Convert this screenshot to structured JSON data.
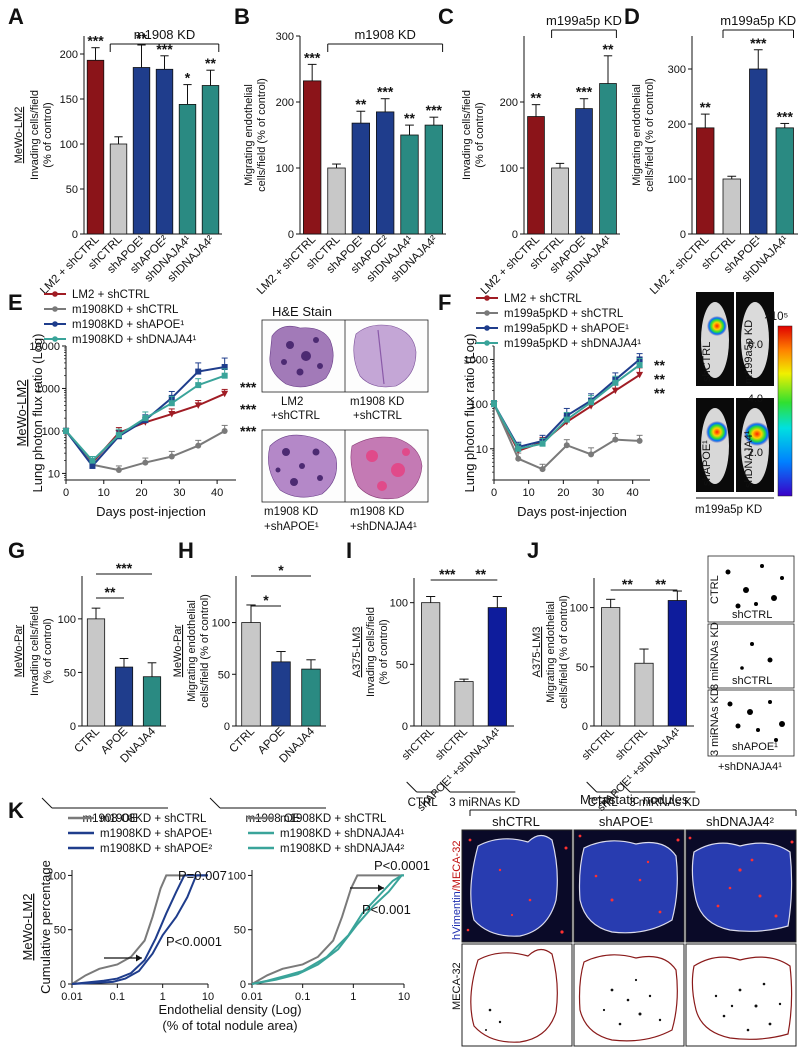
{
  "colors": {
    "dark_red": "#8b1419",
    "light_gray": "#c8c8c8",
    "navy": "#1f3d8c",
    "teal": "#2a8a82",
    "blue_bright": "#0e1c9c",
    "gray_line": "#7a7a7a",
    "red_line": "#a01c24",
    "teal_line": "#3aa49a"
  },
  "panel_letters": {
    "A": "A",
    "B": "B",
    "C": "C",
    "D": "D",
    "E": "E",
    "F": "F",
    "G": "G",
    "H": "H",
    "I": "I",
    "J": "J",
    "K": "K"
  },
  "common": {
    "m1908_kd": "m1908 KD",
    "m199a5p_kd": "m199a5p KD",
    "m1908_oe": "m1908 OE",
    "ctrl": "CTRL",
    "three_mirnas_kd": "3 miRNAs KD",
    "days_post_injection": "Days post-injection",
    "lung_photon_flux": "Lung photon flux ratio (Log)",
    "pct_control": "(% of control)"
  },
  "images": {
    "he_title": "H&E Stain",
    "he_caption_1": "LM2",
    "he_caption_1b": "+shCTRL",
    "he_caption_2": "m1908 KD",
    "he_caption_2b": "+shCTRL",
    "he_caption_3": "m1908 KD",
    "he_caption_3b": "+shAPOE¹",
    "he_caption_4": "m1908 KD",
    "he_caption_4b": "+shDNAJA4¹",
    "bli_label_1": "shCTRL",
    "bli_label_2": "m199a5p KD",
    "bli_label_3": "shAPOE¹",
    "bli_label_4": "shDNAJA4¹",
    "bli_group": "m199a5p KD",
    "colorbar_unit": "×10⁵",
    "colorbar_ticks": [
      "6.0",
      "4.0",
      "2.0"
    ],
    "j_img_1": "CTRL",
    "j_img_1b": "shCTRL",
    "j_img_2": "3 miRNAs KD",
    "j_img_2b": "shCTRL",
    "j_img_3": "3 miRNAs KD",
    "j_img_3b": "shAPOE¹",
    "j_img_3c": "+shDNAJA4¹",
    "k_header": "Metastatic nodules",
    "k_cols": [
      "shCTRL",
      "shAPOE¹",
      "shDNAJA4²"
    ],
    "k_row1_a": "hVimentin",
    "k_row1_b": "/MECA-32",
    "k_row2": "MECA-32"
  },
  "chart_data": [
    {
      "id": "A",
      "type": "bar",
      "ylabel_outer": "MeWo-LM2",
      "ylabel": [
        "Invading cells/field",
        "(% of control)"
      ],
      "ylim": [
        0,
        220
      ],
      "yticks": [
        0,
        50,
        100,
        150,
        200
      ],
      "bracket": "m1908 KD",
      "categories": [
        "LM2 + shCTRL",
        "shCTRL",
        "shAPOE¹",
        "shAPOE²",
        "shDNAJA4¹",
        "shDNAJA4²"
      ],
      "values": [
        193,
        100,
        185,
        183,
        144,
        165
      ],
      "errors": [
        14,
        8,
        25,
        15,
        22,
        17
      ],
      "stars": [
        "***",
        "",
        "**",
        "***",
        "*",
        "**"
      ],
      "colors": [
        "dark_red",
        "light_gray",
        "navy",
        "navy",
        "teal",
        "teal"
      ]
    },
    {
      "id": "B",
      "type": "bar",
      "ylabel": [
        "Migrating endothelial",
        "cells/field (% of control)"
      ],
      "ylim": [
        0,
        300
      ],
      "yticks": [
        0,
        100,
        200,
        300
      ],
      "bracket": "m1908 KD",
      "categories": [
        "LM2 + shCTRL",
        "shCTRL",
        "shAPOE¹",
        "shAPOE²",
        "shDNAJA4¹",
        "shDNAJA4²"
      ],
      "values": [
        232,
        100,
        168,
        185,
        150,
        165
      ],
      "errors": [
        25,
        6,
        18,
        20,
        15,
        12
      ],
      "stars": [
        "***",
        "",
        "**",
        "***",
        "**",
        "***"
      ],
      "colors": [
        "dark_red",
        "light_gray",
        "navy",
        "navy",
        "teal",
        "teal"
      ]
    },
    {
      "id": "C",
      "type": "bar",
      "ylabel": [
        "Invading cells/field",
        "(% of control)"
      ],
      "ylim": [
        0,
        300
      ],
      "yticks": [
        0,
        100,
        200
      ],
      "bracket": "m199a5p KD",
      "categories": [
        "LM2 + shCTRL",
        "shCTRL",
        "shAPOE¹",
        "shDNAJA4¹"
      ],
      "values": [
        178,
        100,
        190,
        228
      ],
      "errors": [
        18,
        7,
        15,
        42
      ],
      "stars": [
        "**",
        "",
        "***",
        "**"
      ],
      "colors": [
        "dark_red",
        "light_gray",
        "navy",
        "teal"
      ]
    },
    {
      "id": "D",
      "type": "bar",
      "ylabel": [
        "Migrating endothelial",
        "cells/field (% of control)"
      ],
      "ylim": [
        0,
        360
      ],
      "yticks": [
        0,
        100,
        200,
        300
      ],
      "bracket": "m199a5p KD",
      "categories": [
        "LM2 + shCTRL",
        "shCTRL",
        "shAPOE¹",
        "shDNAJA4¹"
      ],
      "values": [
        193,
        100,
        300,
        193
      ],
      "errors": [
        25,
        5,
        35,
        8
      ],
      "stars": [
        "**",
        "",
        "***",
        "***"
      ],
      "colors": [
        "dark_red",
        "light_gray",
        "navy",
        "teal"
      ]
    },
    {
      "id": "E",
      "type": "line",
      "ylabel_outer": "MeWo-LM2",
      "ylabel": "Lung photon flux ratio (Log)",
      "xlabel": "Days post-injection",
      "yscale": "log",
      "ylim": [
        7,
        10000
      ],
      "yticks": [
        10,
        100,
        1000,
        10000
      ],
      "xlim": [
        0,
        45
      ],
      "xticks": [
        0,
        10,
        20,
        30,
        40
      ],
      "x": [
        0,
        7,
        14,
        21,
        28,
        35,
        42
      ],
      "series": [
        {
          "name": "LM2 + shCTRL",
          "color": "red_line",
          "marker": "triangle",
          "values": [
            100,
            18,
            90,
            160,
            250,
            400,
            750
          ],
          "errors": [
            15,
            4,
            30,
            50,
            80,
            120,
            200
          ]
        },
        {
          "name": "m1908KD + shCTRL",
          "color": "gray_line",
          "marker": "circle",
          "values": [
            100,
            16,
            12,
            18,
            25,
            45,
            100
          ],
          "errors": [
            15,
            4,
            3,
            5,
            8,
            15,
            35
          ]
        },
        {
          "name": "m1908KD + shAPOE¹",
          "color": "navy",
          "marker": "square",
          "values": [
            100,
            15,
            75,
            180,
            600,
            2500,
            3200
          ],
          "errors": [
            15,
            4,
            25,
            60,
            250,
            1500,
            2000
          ]
        },
        {
          "name": "m1908KD + shDNAJA4¹",
          "color": "teal_line",
          "marker": "square",
          "values": [
            100,
            20,
            80,
            200,
            450,
            1200,
            2000
          ],
          "errors": [
            15,
            5,
            30,
            80,
            200,
            500,
            900
          ]
        }
      ],
      "end_stars": [
        "***",
        "***",
        "***"
      ]
    },
    {
      "id": "F",
      "type": "line",
      "ylabel": "Lung photon flux ratio (Log)",
      "xlabel": "Days post-injection",
      "yscale": "log",
      "ylim": [
        2,
        2000
      ],
      "yticks": [
        10,
        100,
        1000
      ],
      "xlim": [
        0,
        45
      ],
      "xticks": [
        0,
        10,
        20,
        30,
        40
      ],
      "x": [
        0,
        7,
        14,
        21,
        28,
        35,
        42
      ],
      "series": [
        {
          "name": "LM2 + shCTRL",
          "color": "red_line",
          "marker": "triangle",
          "values": [
            100,
            9,
            14,
            40,
            90,
            200,
            450
          ],
          "errors": [
            20,
            2,
            4,
            15,
            35,
            80,
            200
          ]
        },
        {
          "name": "m199a5pKD + shCTRL",
          "color": "gray_line",
          "marker": "circle",
          "values": [
            100,
            6,
            3.5,
            12,
            7.5,
            16,
            15
          ],
          "errors": [
            20,
            2,
            1,
            4,
            3,
            6,
            5
          ]
        },
        {
          "name": "m199a5pKD + shAPOE¹",
          "color": "navy",
          "marker": "square",
          "values": [
            100,
            11,
            15,
            55,
            120,
            350,
            1000
          ],
          "errors": [
            20,
            3,
            5,
            25,
            50,
            150,
            350
          ]
        },
        {
          "name": "m199a5pKD + shDNAJA4¹",
          "color": "teal_line",
          "marker": "square",
          "values": [
            100,
            10,
            13,
            45,
            110,
            300,
            750
          ],
          "errors": [
            20,
            3,
            4,
            20,
            45,
            120,
            300
          ]
        }
      ],
      "end_stars": [
        "**",
        "**",
        "**"
      ]
    },
    {
      "id": "G",
      "type": "bar",
      "ylabel_outer": "MeWo-Par",
      "ylabel": [
        "Invading cells/field",
        "(% of control)"
      ],
      "ylim": [
        0,
        140
      ],
      "yticks": [
        0,
        50,
        100
      ],
      "categories": [
        "CTRL",
        "APOE",
        "DNAJA4"
      ],
      "values": [
        100,
        55,
        46
      ],
      "errors": [
        10,
        8,
        13
      ],
      "colors": [
        "light_gray",
        "navy",
        "teal"
      ],
      "sig": [
        {
          "a": 0,
          "b": 1,
          "label": "**"
        },
        {
          "a": 0,
          "b": 2,
          "label": "***"
        }
      ],
      "group": "m1908 OE"
    },
    {
      "id": "H",
      "type": "bar",
      "ylabel_outer": "MeWo-Par",
      "ylabel": [
        "Migrating endothelial",
        "cells/field (% of control)"
      ],
      "ylim": [
        0,
        145
      ],
      "yticks": [
        0,
        50,
        100
      ],
      "categories": [
        "CTRL",
        "APOE",
        "DNAJA4"
      ],
      "values": [
        100,
        62,
        55
      ],
      "errors": [
        17,
        10,
        9
      ],
      "colors": [
        "light_gray",
        "navy",
        "teal"
      ],
      "sig": [
        {
          "a": 0,
          "b": 1,
          "label": "*"
        },
        {
          "a": 0,
          "b": 2,
          "label": "*"
        }
      ],
      "group": "m1908 OE"
    },
    {
      "id": "I",
      "type": "bar",
      "ylabel_outer": "A375-LM3",
      "ylabel": [
        "Invading cells/field",
        "(% of control)"
      ],
      "ylim": [
        0,
        120
      ],
      "yticks": [
        0,
        50,
        100
      ],
      "categories": [
        "shCTRL",
        "shCTRL",
        "shAPOE¹ +shDNAJA4¹"
      ],
      "values": [
        100,
        36,
        96
      ],
      "errors": [
        5,
        2,
        9
      ],
      "colors": [
        "light_gray",
        "light_gray",
        "blue_bright"
      ],
      "sig": [
        {
          "a": 0,
          "b": 1,
          "label": "***"
        },
        {
          "a": 1,
          "b": 2,
          "label": "**"
        }
      ],
      "group_ctrl": "CTRL",
      "group_kd": "3 miRNAs KD"
    },
    {
      "id": "J",
      "type": "bar",
      "ylabel_outer": "A375-LM3",
      "ylabel": [
        "Migrating endothelial",
        "cells/field (% of control)"
      ],
      "ylim": [
        0,
        125
      ],
      "yticks": [
        0,
        50,
        100
      ],
      "categories": [
        "shCTRL",
        "shCTRL",
        "shAPOE¹ +shDNAJA4¹"
      ],
      "values": [
        100,
        53,
        106
      ],
      "errors": [
        7,
        12,
        8
      ],
      "colors": [
        "light_gray",
        "light_gray",
        "blue_bright"
      ],
      "sig": [
        {
          "a": 0,
          "b": 1,
          "label": "**"
        },
        {
          "a": 1,
          "b": 2,
          "label": "**"
        }
      ],
      "group_ctrl": "CTRL",
      "group_kd": "3 miRNAs KD"
    },
    {
      "id": "K1",
      "type": "line",
      "ylabel_outer": "MeWo-LM2",
      "ylabel": "Cumulative percentage",
      "xscale": "log",
      "xlim": [
        0.01,
        10
      ],
      "xticks": [
        0.01,
        0.1,
        1,
        10
      ],
      "ylim": [
        0,
        105
      ],
      "yticks": [
        0,
        50,
        100
      ],
      "series": [
        {
          "name": "m1908KD + shCTRL",
          "color": "gray_line",
          "points": [
            [
              0.01,
              0
            ],
            [
              0.02,
              8
            ],
            [
              0.04,
              14
            ],
            [
              0.1,
              18
            ],
            [
              0.2,
              25
            ],
            [
              0.4,
              40
            ],
            [
              0.6,
              62
            ],
            [
              0.9,
              88
            ],
            [
              1.2,
              100
            ],
            [
              10,
              100
            ]
          ]
        },
        {
          "name": "m1908KD + shAPOE¹",
          "color": "navy",
          "points": [
            [
              0.01,
              0
            ],
            [
              0.05,
              3
            ],
            [
              0.1,
              5
            ],
            [
              0.2,
              10
            ],
            [
              0.4,
              22
            ],
            [
              0.7,
              42
            ],
            [
              1.2,
              65
            ],
            [
              2,
              85
            ],
            [
              3,
              100
            ],
            [
              10,
              100
            ]
          ]
        },
        {
          "name": "m1908KD + shAPOE²",
          "color": "navy",
          "points": [
            [
              0.01,
              0
            ],
            [
              0.08,
              2
            ],
            [
              0.15,
              5
            ],
            [
              0.3,
              12
            ],
            [
              0.6,
              28
            ],
            [
              1,
              45
            ],
            [
              2,
              62
            ],
            [
              3.5,
              80
            ],
            [
              5.5,
              100
            ],
            [
              10,
              100
            ]
          ]
        }
      ],
      "annotations": [
        "P=0.007",
        "P<0.0001"
      ]
    },
    {
      "id": "K2",
      "type": "line",
      "ylabel": "Cumulative percentage",
      "xscale": "log",
      "xlim": [
        0.01,
        10
      ],
      "xticks": [
        0.01,
        0.1,
        1,
        10
      ],
      "ylim": [
        0,
        105
      ],
      "yticks": [
        0,
        50,
        100
      ],
      "series": [
        {
          "name": "m1908KD + shCTRL",
          "color": "gray_line",
          "points": [
            [
              0.01,
              0
            ],
            [
              0.02,
              8
            ],
            [
              0.04,
              14
            ],
            [
              0.1,
              18
            ],
            [
              0.2,
              25
            ],
            [
              0.4,
              40
            ],
            [
              0.6,
              62
            ],
            [
              0.9,
              88
            ],
            [
              1.2,
              100
            ],
            [
              10,
              100
            ]
          ]
        },
        {
          "name": "m1908KD + shDNAJA4¹",
          "color": "teal_line",
          "points": [
            [
              0.01,
              0
            ],
            [
              0.02,
              3
            ],
            [
              0.05,
              8
            ],
            [
              0.1,
              12
            ],
            [
              0.3,
              25
            ],
            [
              0.8,
              45
            ],
            [
              1.5,
              65
            ],
            [
              3,
              80
            ],
            [
              6,
              95
            ],
            [
              9,
              100
            ],
            [
              10,
              100
            ]
          ]
        },
        {
          "name": "m1908KD + shDNAJA4²",
          "color": "teal_line",
          "points": [
            [
              0.01,
              0
            ],
            [
              0.03,
              4
            ],
            [
              0.08,
              9
            ],
            [
              0.2,
              18
            ],
            [
              0.5,
              32
            ],
            [
              1.2,
              55
            ],
            [
              2.5,
              72
            ],
            [
              5,
              85
            ],
            [
              9,
              100
            ],
            [
              10,
              100
            ]
          ]
        }
      ],
      "annotations": [
        "P<0.0001",
        "P<0.001"
      ]
    }
  ],
  "k_xlabel": [
    "Endothelial density (Log)",
    "(% of total nodule area)"
  ]
}
